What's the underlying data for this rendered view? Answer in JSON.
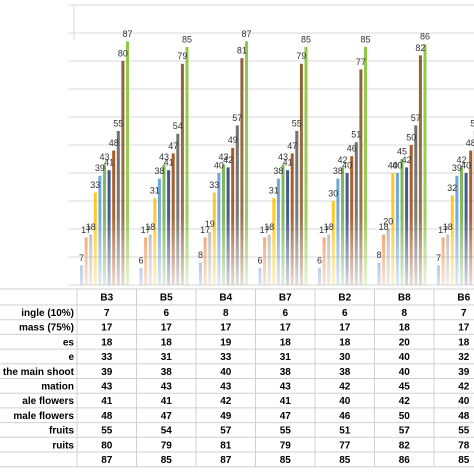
{
  "chart_data": {
    "type": "bar",
    "categories": [
      "B3",
      "B5",
      "B4",
      "B7",
      "B2",
      "B8",
      "B6"
    ],
    "ylim": [
      0,
      100
    ],
    "yticks": [
      0,
      10,
      20,
      30,
      40,
      50,
      60,
      70,
      80,
      90,
      100
    ],
    "grid": true,
    "series": [
      {
        "name": "ingle (10%)",
        "color": "#4472c4",
        "values": [
          7,
          6,
          8,
          6,
          6,
          8,
          7
        ]
      },
      {
        "name": "mass (75%)",
        "color": "#ed7d31",
        "values": [
          17,
          17,
          17,
          17,
          17,
          18,
          17
        ]
      },
      {
        "name": "es",
        "color": "#a5a5a5",
        "values": [
          18,
          18,
          19,
          18,
          18,
          20,
          18
        ]
      },
      {
        "name": "e",
        "color": "#ffc000",
        "values": [
          33,
          31,
          33,
          31,
          30,
          40,
          32
        ]
      },
      {
        "name": "the main shoot",
        "color": "#5b9bd5",
        "values": [
          39,
          38,
          40,
          38,
          38,
          40,
          39
        ]
      },
      {
        "name": "mation",
        "color": "#70ad47",
        "values": [
          43,
          43,
          43,
          43,
          42,
          45,
          42
        ]
      },
      {
        "name": "ale flowers",
        "color": "#264478",
        "values": [
          41,
          41,
          42,
          41,
          40,
          42,
          40
        ]
      },
      {
        "name": "male flowers",
        "color": "#9e480e",
        "values": [
          48,
          47,
          49,
          47,
          46,
          50,
          48
        ]
      },
      {
        "name": "fruits",
        "color": "#636363",
        "values": [
          55,
          54,
          57,
          55,
          51,
          57,
          55
        ]
      },
      {
        "name": "ruits",
        "color": "#8b5a2b",
        "values": [
          80,
          79,
          81,
          79,
          77,
          82,
          78
        ]
      },
      {
        "name": null,
        "color": "#8cc63f",
        "values": [
          87,
          85,
          87,
          85,
          85,
          86,
          85
        ]
      }
    ]
  }
}
